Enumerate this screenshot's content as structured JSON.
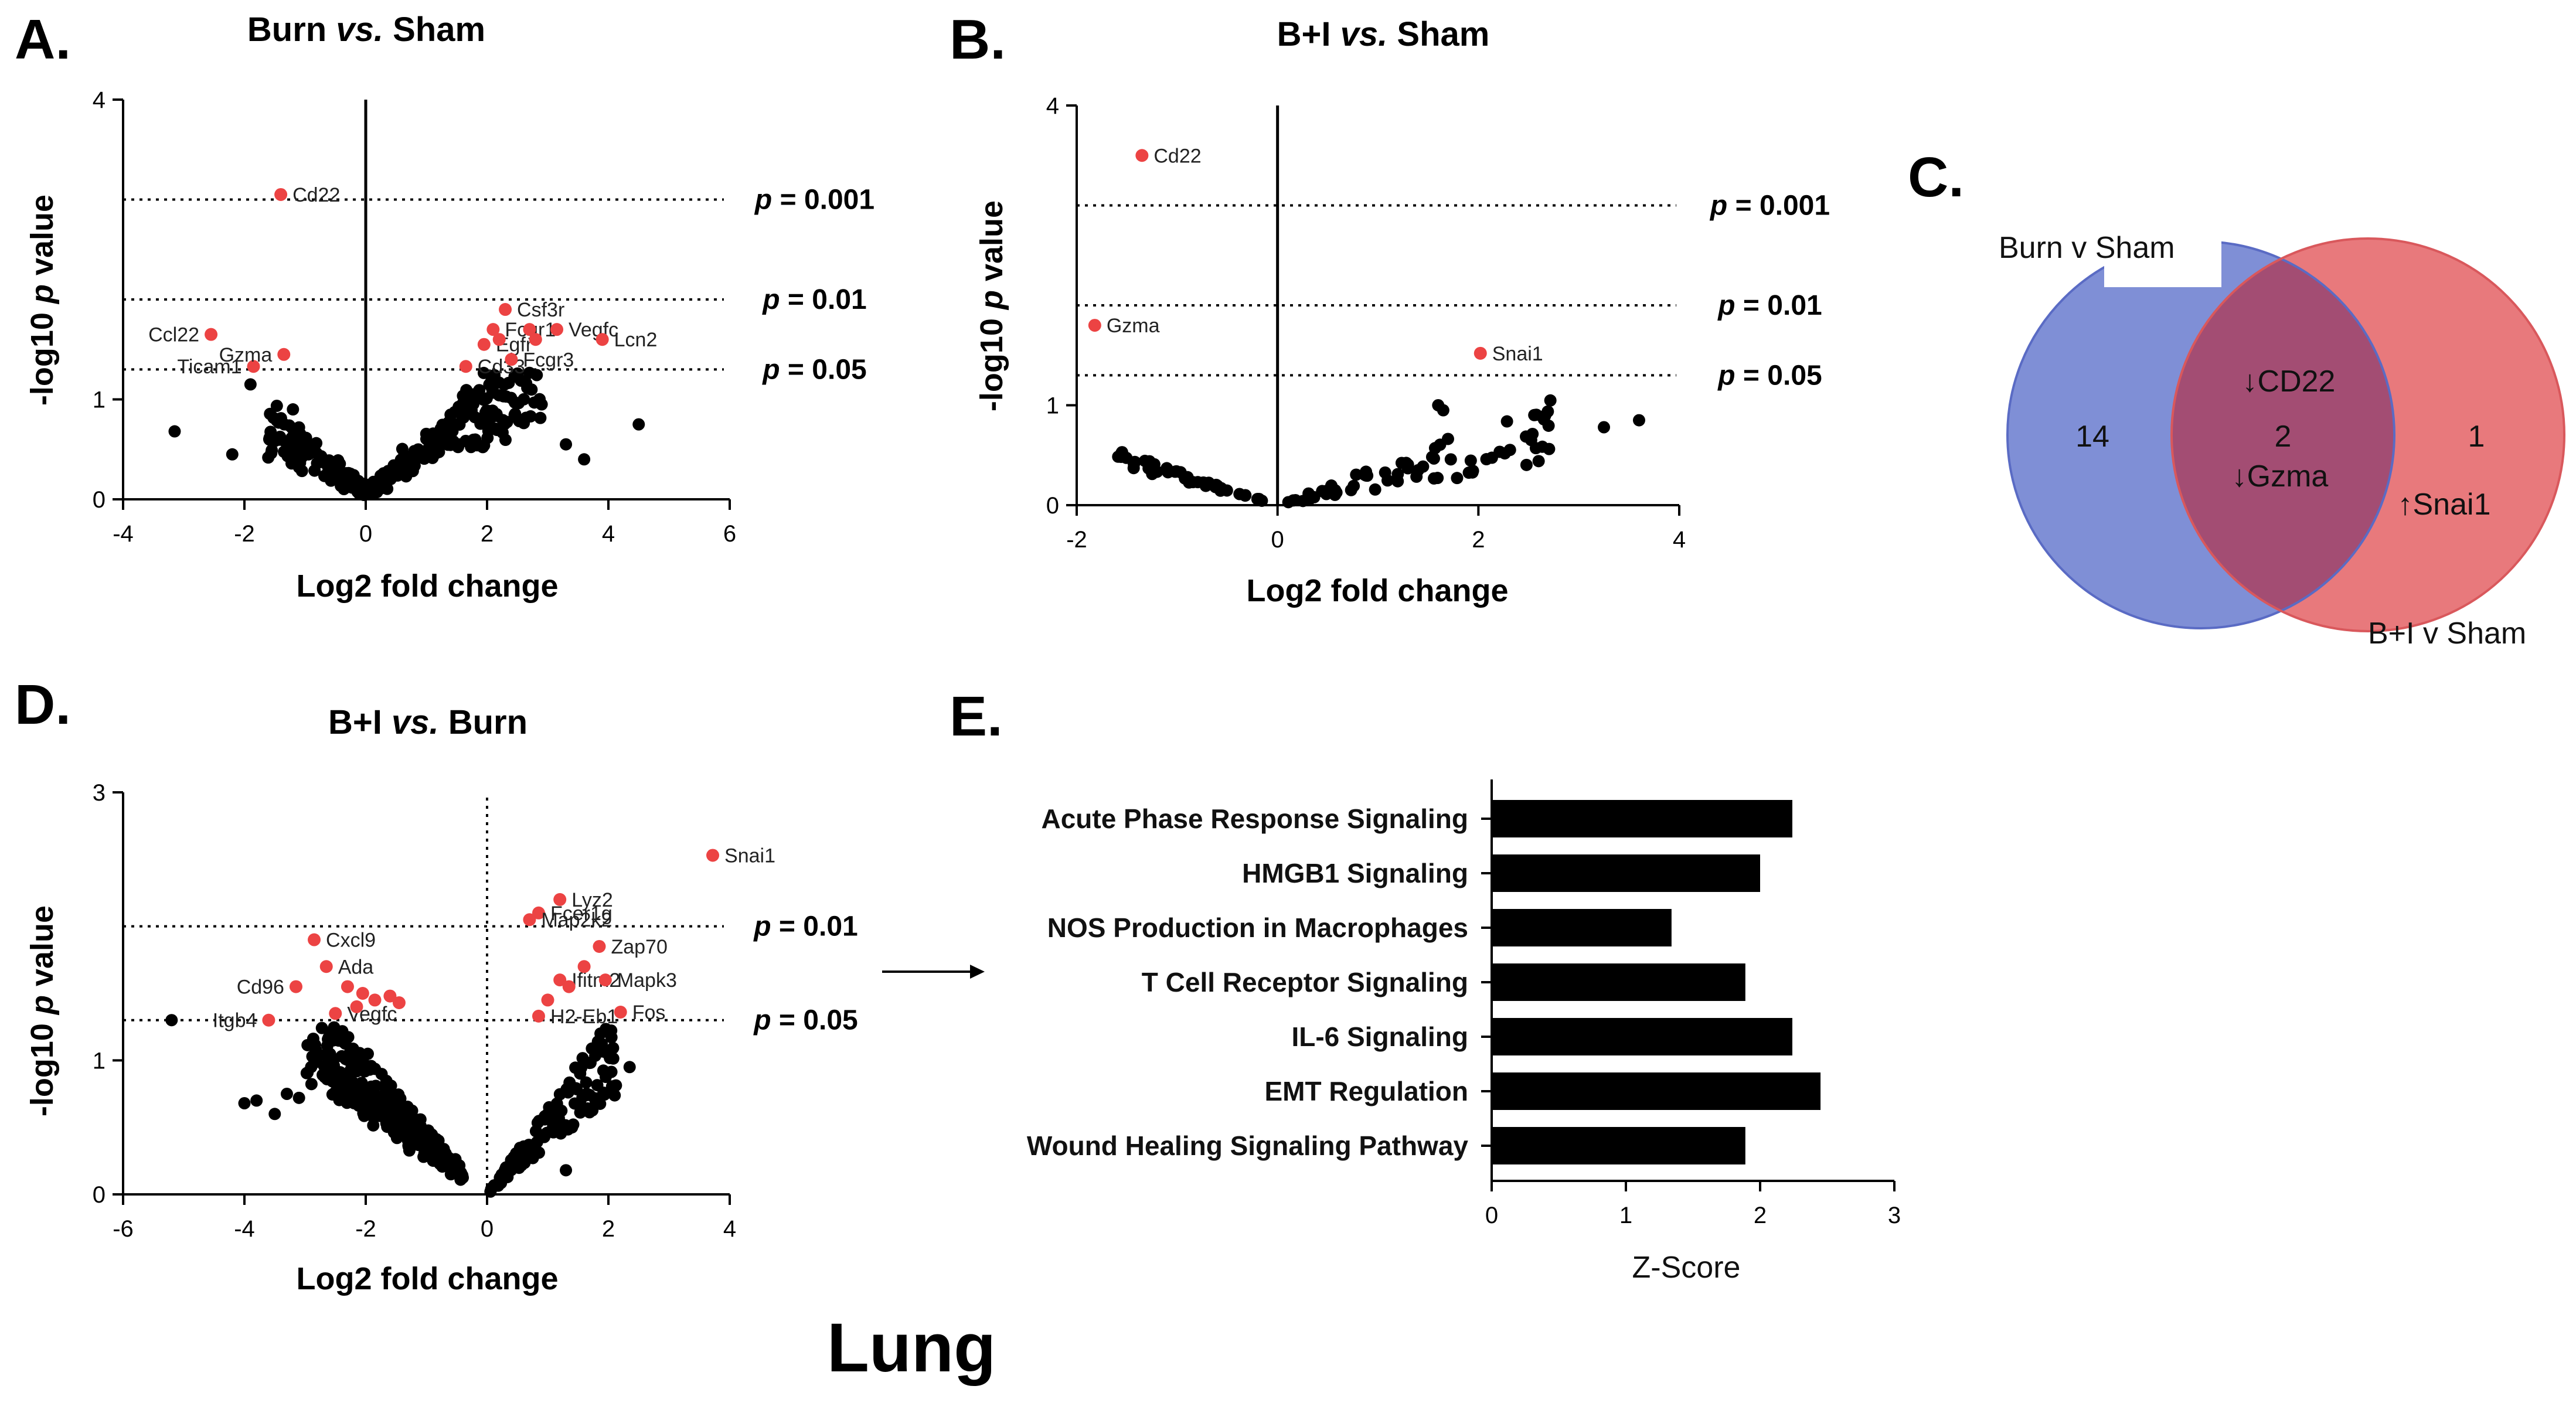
{
  "page": {
    "bottom_label": "Lung",
    "colors": {
      "highlight": "#ec4343",
      "point": "#000000",
      "venn_left": "#7f8fd6",
      "venn_right": "#e8797c",
      "venn_overlap": "#a34d73",
      "bar": "#000000"
    }
  },
  "chart_data": [
    {
      "panel": "A.",
      "type": "scatter",
      "title_parts": [
        "Burn ",
        "vs.",
        " Sham"
      ],
      "xlabel": "Log2 fold change",
      "ylabel_parts": [
        "-log10 ",
        "p",
        " value"
      ],
      "xlim": [
        -4,
        6
      ],
      "ylim": [
        0,
        4
      ],
      "xticks": [
        "-4",
        "-2",
        "0",
        "2",
        "4",
        "6"
      ],
      "yticks": [
        "0",
        "1",
        "4"
      ],
      "ytick_values": [
        0,
        1,
        4
      ],
      "vline_style": "solid",
      "thresholds": [
        {
          "y": 3.0,
          "p": "p",
          "label": " = 0.001"
        },
        {
          "y": 2.0,
          "p": "p",
          "label": " = 0.01"
        },
        {
          "y": 1.3,
          "p": "p",
          "label": " = 0.05"
        }
      ],
      "highlighted": [
        {
          "gene": "Cd22",
          "x": -1.4,
          "y": 3.05
        },
        {
          "gene": "Ccl22",
          "x": -2.55,
          "y": 1.65
        },
        {
          "gene": "Ticam1",
          "x": -1.85,
          "y": 1.33
        },
        {
          "gene": "Gzma",
          "x": -1.35,
          "y": 1.45
        },
        {
          "gene": "Csf3r",
          "x": 2.3,
          "y": 1.9
        },
        {
          "gene": "Fcgr1",
          "x": 2.1,
          "y": 1.7
        },
        {
          "gene": "Egfr",
          "x": 1.95,
          "y": 1.55
        },
        {
          "gene": "Cd33",
          "x": 1.65,
          "y": 1.33
        },
        {
          "gene": "Vegfc",
          "x": 3.15,
          "y": 1.7
        },
        {
          "gene": "Lcn2",
          "x": 3.9,
          "y": 1.6
        },
        {
          "gene": "Fcgr3",
          "x": 2.4,
          "y": 1.4
        },
        {
          "gene": "",
          "x": 2.7,
          "y": 1.7
        },
        {
          "gene": "",
          "x": 2.8,
          "y": 1.6
        },
        {
          "gene": "",
          "x": 2.2,
          "y": 1.6
        }
      ]
    },
    {
      "panel": "B.",
      "type": "scatter",
      "title_parts": [
        "B+I ",
        "vs.",
        " Sham"
      ],
      "xlabel": "Log2 fold change",
      "ylabel_parts": [
        "-log10 ",
        "p",
        " value"
      ],
      "xlim": [
        -2,
        4
      ],
      "ylim": [
        0,
        4
      ],
      "xticks": [
        "-2",
        "0",
        "2",
        "4"
      ],
      "yticks": [
        "0",
        "1",
        "4"
      ],
      "ytick_values": [
        0,
        1,
        4
      ],
      "vline_style": "solid",
      "thresholds": [
        {
          "y": 3.0,
          "p": "p",
          "label": " = 0.001"
        },
        {
          "y": 2.0,
          "p": "p",
          "label": " = 0.01"
        },
        {
          "y": 1.3,
          "p": "p",
          "label": " = 0.05"
        }
      ],
      "highlighted": [
        {
          "gene": "Cd22",
          "x": -1.35,
          "y": 3.5
        },
        {
          "gene": "Gzma",
          "x": -1.82,
          "y": 1.8
        },
        {
          "gene": "Snai1",
          "x": 2.02,
          "y": 1.52
        }
      ]
    },
    {
      "panel": "D.",
      "type": "scatter",
      "title_parts": [
        "B+I ",
        "vs.",
        " Burn"
      ],
      "xlabel": "Log2 fold change",
      "ylabel_parts": [
        "-log10 ",
        "p",
        " value"
      ],
      "xlim": [
        -6,
        4
      ],
      "ylim": [
        0,
        3
      ],
      "xticks": [
        "-6",
        "-4",
        "-2",
        "0",
        "2",
        "4"
      ],
      "yticks": [
        "0",
        "1",
        "3"
      ],
      "ytick_values": [
        0,
        1,
        3
      ],
      "vline_style": "dotted",
      "thresholds": [
        {
          "y": 2.0,
          "p": "p",
          "label": " = 0.01"
        },
        {
          "y": 1.3,
          "p": "p",
          "label": " = 0.05"
        }
      ],
      "highlighted": [
        {
          "gene": "Snai1",
          "x": 3.72,
          "y": 2.53
        },
        {
          "gene": "Fcer1g",
          "x": 0.85,
          "y": 2.1
        },
        {
          "gene": "Lyz2",
          "x": 1.2,
          "y": 2.2
        },
        {
          "gene": "Map2k2",
          "x": 0.7,
          "y": 2.05
        },
        {
          "gene": "Zap70",
          "x": 1.85,
          "y": 1.85
        },
        {
          "gene": "Ifitm2",
          "x": 1.2,
          "y": 1.6
        },
        {
          "gene": "Mapk3",
          "x": 1.95,
          "y": 1.6
        },
        {
          "gene": "H2-Eb1",
          "x": 0.85,
          "y": 1.33
        },
        {
          "gene": "Fos",
          "x": 2.2,
          "y": 1.36
        },
        {
          "gene": "Cxcl9",
          "x": -2.85,
          "y": 1.9
        },
        {
          "gene": "Ada",
          "x": -2.65,
          "y": 1.7
        },
        {
          "gene": "Cd96",
          "x": -3.15,
          "y": 1.55
        },
        {
          "gene": "Itgb4",
          "x": -3.6,
          "y": 1.3
        },
        {
          "gene": "Vegfc",
          "x": -2.5,
          "y": 1.35
        },
        {
          "gene": "",
          "x": -2.3,
          "y": 1.55
        },
        {
          "gene": "",
          "x": -2.05,
          "y": 1.5
        },
        {
          "gene": "",
          "x": -1.6,
          "y": 1.48
        },
        {
          "gene": "",
          "x": -1.45,
          "y": 1.43
        },
        {
          "gene": "",
          "x": -2.15,
          "y": 1.4
        },
        {
          "gene": "",
          "x": -1.85,
          "y": 1.45
        },
        {
          "gene": "",
          "x": 1.0,
          "y": 1.45
        },
        {
          "gene": "",
          "x": 1.6,
          "y": 1.7
        },
        {
          "gene": "",
          "x": 1.35,
          "y": 1.55
        }
      ]
    },
    {
      "panel": "E.",
      "type": "bar",
      "orientation": "horizontal",
      "categories": [
        "Acute Phase Response Signaling",
        "HMGB1 Signaling",
        "NOS Production in Macrophages",
        "T Cell Receptor Signaling",
        "IL-6 Signaling",
        "EMT Regulation",
        "Wound Healing Signaling Pathway"
      ],
      "values": [
        2.24,
        2.0,
        1.34,
        1.89,
        2.24,
        2.45,
        1.89
      ],
      "xlabel": "Z-Score",
      "xlim": [
        0,
        3
      ],
      "xticks": [
        "0",
        "1",
        "2",
        "3"
      ]
    }
  ],
  "venn": {
    "panel": "C.",
    "left_label": "Burn v Sham",
    "right_label": "B+I v Sham",
    "left_only": "14",
    "overlap": "2",
    "right_only": "1",
    "overlap_genes": [
      "↓CD22",
      "↓Gzma"
    ],
    "right_genes": [
      "↑Snai1"
    ]
  }
}
